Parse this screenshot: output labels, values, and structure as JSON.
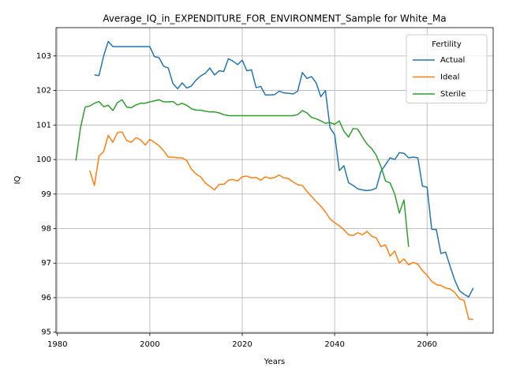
{
  "chart_data": {
    "type": "line",
    "title": "Average_IQ_in_EXPENDITURE_FOR_ENVIRONMENT_Sample for White_Ma",
    "x_label": "Years",
    "y_label": "IQ",
    "x": [
      1984,
      1985,
      1986,
      1987,
      1988,
      1989,
      1990,
      1991,
      1992,
      1993,
      1994,
      1995,
      1996,
      1997,
      1998,
      1999,
      2000,
      2001,
      2002,
      2003,
      2004,
      2005,
      2006,
      2007,
      2008,
      2009,
      2010,
      2011,
      2012,
      2013,
      2014,
      2015,
      2016,
      2017,
      2018,
      2019,
      2020,
      2021,
      2022,
      2023,
      2024,
      2025,
      2026,
      2027,
      2028,
      2029,
      2030,
      2031,
      2032,
      2033,
      2034,
      2035,
      2036,
      2037,
      2038,
      2039,
      2040,
      2041,
      2042,
      2043,
      2044,
      2045,
      2046,
      2047,
      2048,
      2049,
      2050,
      2051,
      2052,
      2053,
      2054,
      2055,
      2056,
      2057,
      2058,
      2059,
      2060,
      2061,
      2062,
      2063,
      2064,
      2065,
      2066,
      2067,
      2068,
      2069,
      2070
    ],
    "series": [
      {
        "name": "Actual",
        "color": "#1f77b4",
        "values": [
          null,
          null,
          null,
          null,
          102.45,
          102.43,
          103.0,
          103.42,
          103.27,
          103.27,
          103.27,
          103.27,
          103.27,
          103.27,
          103.27,
          103.27,
          103.27,
          102.98,
          102.95,
          102.7,
          102.65,
          102.2,
          102.05,
          102.22,
          102.07,
          102.13,
          102.3,
          102.42,
          102.5,
          102.65,
          102.45,
          102.57,
          102.55,
          102.92,
          102.85,
          102.75,
          102.88,
          102.57,
          102.6,
          102.08,
          102.12,
          101.87,
          101.87,
          101.88,
          101.98,
          101.93,
          101.92,
          101.9,
          101.98,
          102.52,
          102.35,
          102.4,
          102.22,
          101.82,
          102.0,
          100.92,
          100.72,
          99.68,
          99.82,
          99.33,
          99.25,
          99.15,
          99.12,
          99.1,
          99.12,
          99.17,
          99.65,
          99.85,
          100.05,
          100.0,
          100.2,
          100.18,
          100.05,
          100.07,
          100.05,
          99.23,
          99.2,
          97.98,
          97.97,
          97.28,
          97.32,
          96.9,
          96.5,
          96.2,
          96.1,
          96.02,
          96.28
        ]
      },
      {
        "name": "Ideal",
        "color": "#ff7f0e",
        "values": [
          null,
          null,
          null,
          99.68,
          99.25,
          100.1,
          100.23,
          100.7,
          100.5,
          100.78,
          100.8,
          100.55,
          100.5,
          100.63,
          100.57,
          100.42,
          100.58,
          100.5,
          100.4,
          100.25,
          100.07,
          100.07,
          100.05,
          100.05,
          99.97,
          99.72,
          99.58,
          99.5,
          99.32,
          99.22,
          99.12,
          99.28,
          99.28,
          99.4,
          99.42,
          99.38,
          99.5,
          99.52,
          99.47,
          99.48,
          99.4,
          99.5,
          99.45,
          99.48,
          99.55,
          99.47,
          99.45,
          99.35,
          99.27,
          99.25,
          99.08,
          98.93,
          98.78,
          98.65,
          98.48,
          98.28,
          98.17,
          98.08,
          97.97,
          97.82,
          97.8,
          97.88,
          97.82,
          97.92,
          97.78,
          97.73,
          97.48,
          97.53,
          97.2,
          97.35,
          97.0,
          97.12,
          96.95,
          97.02,
          96.97,
          96.78,
          96.65,
          96.47,
          96.38,
          96.35,
          96.28,
          96.25,
          96.15,
          95.97,
          95.92,
          95.38,
          95.37
        ]
      },
      {
        "name": "Sterile",
        "color": "#2ca02c",
        "values": [
          99.97,
          100.92,
          101.52,
          101.55,
          101.63,
          101.68,
          101.53,
          101.57,
          101.42,
          101.65,
          101.73,
          101.52,
          101.5,
          101.58,
          101.63,
          101.63,
          101.67,
          101.7,
          101.73,
          101.67,
          101.67,
          101.68,
          101.58,
          101.63,
          101.57,
          101.47,
          101.43,
          101.43,
          101.4,
          101.38,
          101.38,
          101.35,
          101.3,
          101.27,
          101.27,
          101.27,
          101.27,
          101.27,
          101.27,
          101.27,
          101.27,
          101.27,
          101.27,
          101.27,
          101.27,
          101.27,
          101.27,
          101.27,
          101.3,
          101.42,
          101.35,
          101.22,
          101.18,
          101.12,
          101.05,
          101.07,
          101.02,
          101.12,
          100.82,
          100.65,
          100.9,
          100.88,
          100.65,
          100.45,
          100.32,
          100.12,
          99.8,
          99.38,
          99.32,
          99.0,
          98.45,
          98.83,
          97.47,
          null,
          null,
          null,
          null,
          null,
          null,
          null,
          null,
          null,
          null,
          null,
          null,
          null,
          null
        ]
      }
    ],
    "legend_title": "Fertility",
    "legend": "upper right",
    "xlim": [
      1979.7,
      2074.3
    ],
    "xticks": [
      1980,
      2000,
      2020,
      2040,
      2060
    ],
    "ylim": [
      94.97,
      103.82
    ],
    "yticks": [
      95,
      96,
      97,
      98,
      99,
      100,
      101,
      102,
      103
    ],
    "grid": true
  }
}
